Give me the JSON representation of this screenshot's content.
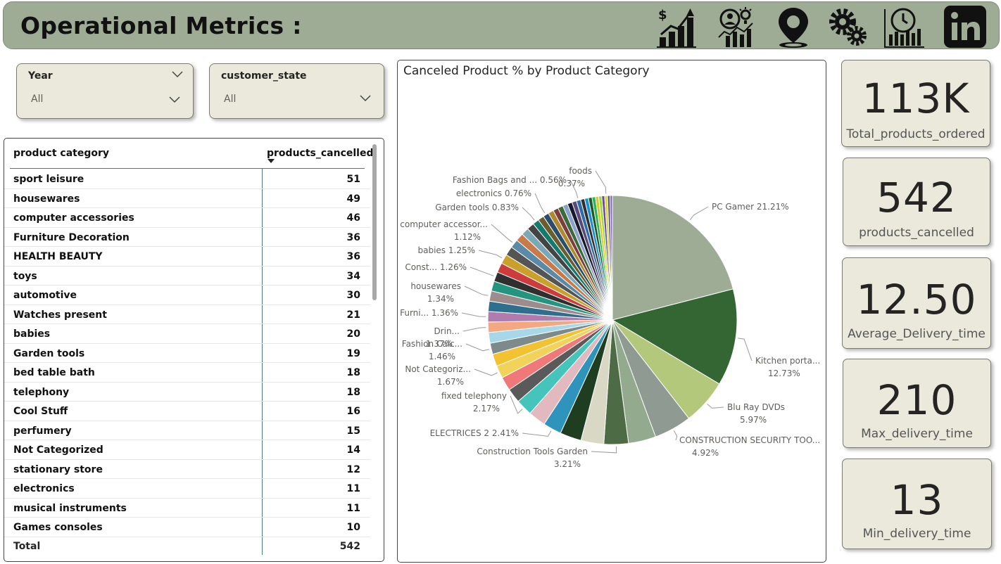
{
  "header": {
    "title": "Operational Metrics :",
    "icons": [
      "revenue-growth-chart-icon",
      "customer-insights-icon",
      "location-pin-icon",
      "settings-gears-icon",
      "time-chart-icon",
      "linkedin-icon"
    ]
  },
  "slicers": [
    {
      "title": "Year",
      "value": "All"
    },
    {
      "title": "customer_state",
      "value": "All"
    }
  ],
  "table": {
    "col1": "product category",
    "col2": "products_cancelled",
    "rows": [
      {
        "category": "sport leisure",
        "cancelled": "51"
      },
      {
        "category": "housewares",
        "cancelled": "49"
      },
      {
        "category": "computer accessories",
        "cancelled": "46"
      },
      {
        "category": "Furniture Decoration",
        "cancelled": "36"
      },
      {
        "category": "HEALTH BEAUTY",
        "cancelled": "36"
      },
      {
        "category": "toys",
        "cancelled": "34"
      },
      {
        "category": "automotive",
        "cancelled": "30"
      },
      {
        "category": "Watches present",
        "cancelled": "21"
      },
      {
        "category": "babies",
        "cancelled": "20"
      },
      {
        "category": "Garden tools",
        "cancelled": "19"
      },
      {
        "category": "bed table bath",
        "cancelled": "18"
      },
      {
        "category": "telephony",
        "cancelled": "18"
      },
      {
        "category": "Cool Stuff",
        "cancelled": "16"
      },
      {
        "category": "perfumery",
        "cancelled": "15"
      },
      {
        "category": "Not Categorized",
        "cancelled": "14"
      },
      {
        "category": "stationary store",
        "cancelled": "12"
      },
      {
        "category": "electronics",
        "cancelled": "11"
      },
      {
        "category": "musical instruments",
        "cancelled": "11"
      },
      {
        "category": "Games consoles",
        "cancelled": "10"
      }
    ],
    "total_label": "Total",
    "total_value": "542"
  },
  "chart_data": {
    "type": "pie",
    "title": "Canceled Product % by Product Category",
    "slices": [
      {
        "label": "PC Gamer",
        "value": 21.21,
        "color": "#9eac96",
        "text": "PC Gamer 21.21%"
      },
      {
        "label": "Kitchen porta...",
        "value": 12.73,
        "color": "#336633",
        "text": "Kitchen porta...|12.73%"
      },
      {
        "label": "Blu Ray DVDs",
        "value": 5.97,
        "color": "#b4c87c",
        "text": "Blu Ray DVDs|5.97%"
      },
      {
        "label": "CONSTRUCTION SECURITY TOO...",
        "value": 4.92,
        "color": "#8e9a92",
        "text": "CONSTRUCTION SECURITY TOO...|4.92%"
      },
      {
        "label": "",
        "value": 3.6,
        "color": "#93aa8e"
      },
      {
        "label": "Construction Tools Garden",
        "value": 3.21,
        "color": "#4d6b44",
        "text": "Construction Tools Garden|3.21%"
      },
      {
        "label": "",
        "value": 3.0,
        "color": "#d9d8c4"
      },
      {
        "label": "",
        "value": 2.8,
        "color": "#1f3d20"
      },
      {
        "label": "ELECTRICES 2",
        "value": 2.41,
        "color": "#2e94bb",
        "text": "ELECTRICES 2 2.41%"
      },
      {
        "label": "",
        "value": 2.3,
        "color": "#e3b9c0"
      },
      {
        "label": "fixed telephony",
        "value": 2.17,
        "color": "#45c4bc",
        "text": "fixed telephony|2.17%"
      },
      {
        "label": "",
        "value": 1.9,
        "color": "#5a5a5a"
      },
      {
        "label": "",
        "value": 1.8,
        "color": "#f07878"
      },
      {
        "label": "Not Categoriz...",
        "value": 1.67,
        "color": "#f2d35a",
        "text": "Not Categoriz...|1.67%"
      },
      {
        "label": "",
        "value": 1.6,
        "color": "#f2c230"
      },
      {
        "label": "Fashion Calc...",
        "value": 1.46,
        "color": "#7c8a8c",
        "text": "Fashion Calc...|1.46%"
      },
      {
        "label": "",
        "value": 1.4,
        "color": "#a6d8ea"
      },
      {
        "label": "Drin...",
        "value": 1.37,
        "color": "#f4a882",
        "text": "Drin...|1.37%"
      },
      {
        "label": "Furni...",
        "value": 1.36,
        "color": "#b07cae",
        "text": "Furni... 1.36%"
      },
      {
        "label": "",
        "value": 1.35,
        "color": "#2e6f8e"
      },
      {
        "label": "housewares",
        "value": 1.34,
        "color": "#9c8c8c",
        "text": "housewares|1.34%"
      },
      {
        "label": "",
        "value": 1.3,
        "color": "#23957e"
      },
      {
        "label": "Const...",
        "value": 1.26,
        "color": "#2f2f2f",
        "text": "Const... 1.26%"
      },
      {
        "label": "",
        "value": 1.26,
        "color": "#cc3c3c"
      },
      {
        "label": "babies",
        "value": 1.25,
        "color": "#c9a12a",
        "text": "babies 1.25%"
      },
      {
        "label": "",
        "value": 1.2,
        "color": "#555555"
      },
      {
        "label": "computer accessor...",
        "value": 1.12,
        "color": "#5b8aa6",
        "text": "computer accessor...|1.12%"
      },
      {
        "label": "",
        "value": 1.05,
        "color": "#c77a4a"
      },
      {
        "label": "",
        "value": 1.0,
        "color": "#7aa8b6"
      },
      {
        "label": "",
        "value": 0.95,
        "color": "#444444"
      },
      {
        "label": "Garden tools",
        "value": 0.83,
        "color": "#157a6e",
        "text": "Garden tools 0.83%"
      },
      {
        "label": "",
        "value": 0.8,
        "color": "#6a5d2e"
      },
      {
        "label": "electronics",
        "value": 0.76,
        "color": "#2a4d6b",
        "text": "electronics 0.76%"
      },
      {
        "label": "",
        "value": 0.72,
        "color": "#b08a2a"
      },
      {
        "label": "",
        "value": 0.7,
        "color": "#7b3f3f"
      },
      {
        "label": "",
        "value": 0.68,
        "color": "#3d6a3d"
      },
      {
        "label": "",
        "value": 0.65,
        "color": "#8aa2c9"
      },
      {
        "label": "",
        "value": 0.62,
        "color": "#1a1a2e"
      },
      {
        "label": "",
        "value": 0.6,
        "color": "#5a4a7a"
      },
      {
        "label": "Fashion Bags and ...",
        "value": 0.56,
        "color": "#2d6ea8",
        "text": "Fashion Bags and ... 0.56%"
      },
      {
        "label": "",
        "value": 0.52,
        "color": "#303030"
      },
      {
        "label": "",
        "value": 0.5,
        "color": "#1d8fd6"
      },
      {
        "label": "",
        "value": 0.48,
        "color": "#1d5a2a"
      },
      {
        "label": "",
        "value": 0.45,
        "color": "#2ab55a"
      },
      {
        "label": "",
        "value": 0.42,
        "color": "#d9c928"
      },
      {
        "label": "",
        "value": 0.4,
        "color": "#a4d83a"
      },
      {
        "label": "",
        "value": 0.38,
        "color": "#6a4a9a"
      },
      {
        "label": "foods",
        "value": 0.37,
        "color": "#d9d23a",
        "text": "foods|0.37%"
      },
      {
        "label": "",
        "value": 0.33,
        "color": "#555577"
      },
      {
        "label": "",
        "value": 0.31,
        "color": "#8a62c2"
      }
    ]
  },
  "cards": [
    {
      "value": "113K",
      "label": "Total_products_ordered"
    },
    {
      "value": "542",
      "label": "products_cancelled"
    },
    {
      "value": "12.50",
      "label": "Average_Delivery_time"
    },
    {
      "value": "210",
      "label": "Max_delivery_time"
    },
    {
      "value": "13",
      "label": "Min_delivery_time"
    }
  ]
}
